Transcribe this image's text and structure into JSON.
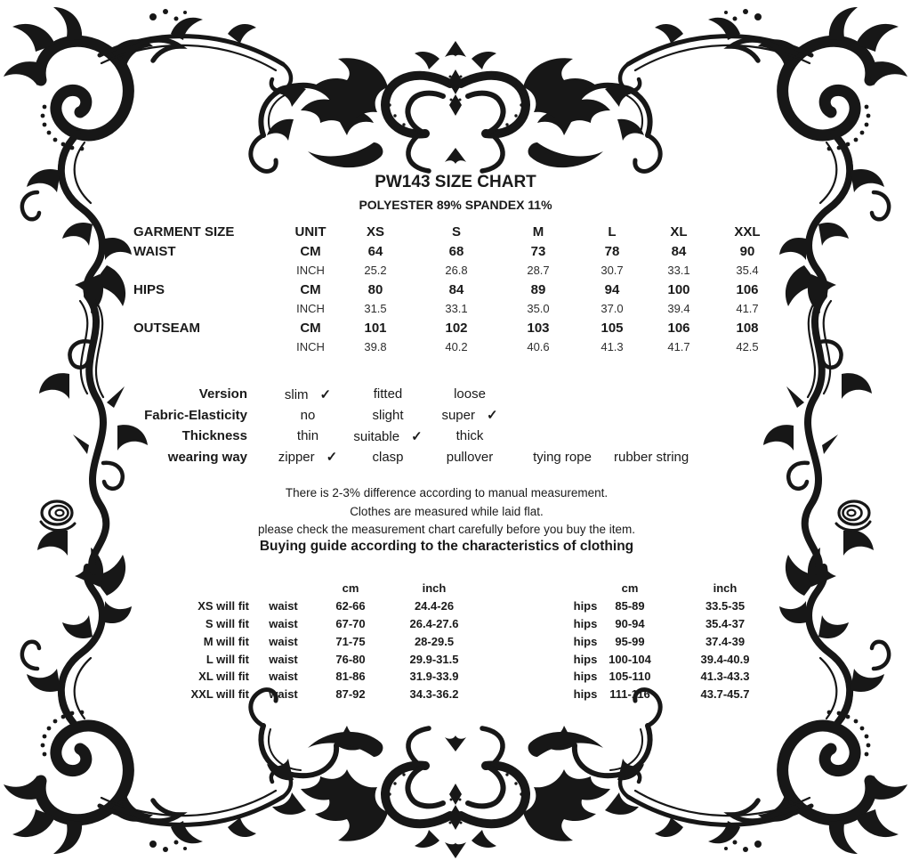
{
  "title": "PW143 SIZE CHART",
  "subtitle": "POLYESTER 89% SPANDEX 11%",
  "colors": {
    "ink": "#1a1a1a",
    "background": "#ffffff",
    "ornament": "#171717"
  },
  "decor": {
    "border_style": "ornate-floral-filigree",
    "motifs": [
      "corner-spiral-scroll",
      "side-vine-with-rose",
      "damask-centerpiece"
    ]
  },
  "size_table": {
    "header": [
      "GARMENT SIZE",
      "UNIT",
      "XS",
      "S",
      "M",
      "L",
      "XL",
      "XXL"
    ],
    "rows": [
      {
        "label": "WAIST",
        "unit": "CM",
        "bold": true,
        "values": [
          "64",
          "68",
          "73",
          "78",
          "84",
          "90"
        ]
      },
      {
        "label": "",
        "unit": "INCH",
        "bold": false,
        "values": [
          "25.2",
          "26.8",
          "28.7",
          "30.7",
          "33.1",
          "35.4"
        ]
      },
      {
        "label": "HIPS",
        "unit": "CM",
        "bold": true,
        "values": [
          "80",
          "84",
          "89",
          "94",
          "100",
          "106"
        ]
      },
      {
        "label": "",
        "unit": "INCH",
        "bold": false,
        "values": [
          "31.5",
          "33.1",
          "35.0",
          "37.0",
          "39.4",
          "41.7"
        ]
      },
      {
        "label": "OUTSEAM",
        "unit": "CM",
        "bold": true,
        "values": [
          "101",
          "102",
          "103",
          "105",
          "106",
          "108"
        ]
      },
      {
        "label": "",
        "unit": "INCH",
        "bold": false,
        "values": [
          "39.8",
          "40.2",
          "40.6",
          "41.3",
          "41.7",
          "42.5"
        ]
      }
    ]
  },
  "attributes": {
    "check_mark": "✓",
    "rows": [
      {
        "label": "Version",
        "options": [
          {
            "text": "slim",
            "checked": true
          },
          {
            "text": "fitted",
            "checked": false
          },
          {
            "text": "loose",
            "checked": false
          }
        ]
      },
      {
        "label": "Fabric-Elasticity",
        "options": [
          {
            "text": "no",
            "checked": false
          },
          {
            "text": "slight",
            "checked": false
          },
          {
            "text": "super",
            "checked": true
          }
        ]
      },
      {
        "label": "Thickness",
        "options": [
          {
            "text": "thin",
            "checked": false
          },
          {
            "text": "suitable",
            "checked": true
          },
          {
            "text": "thick",
            "checked": false
          }
        ]
      },
      {
        "label": "wearing way",
        "options": [
          {
            "text": "zipper",
            "checked": true
          },
          {
            "text": "clasp",
            "checked": false
          },
          {
            "text": "pullover",
            "checked": false
          },
          {
            "text": "tying rope",
            "checked": false
          },
          {
            "text": "rubber string",
            "checked": false
          }
        ]
      }
    ]
  },
  "notes": [
    "There is 2-3% difference according to manual measurement.",
    "Clothes are measured while laid flat.",
    "please check the measurement chart carefully before you buy the item."
  ],
  "buying_guide": {
    "heading": "Buying guide according to the characteristics of clothing",
    "col_headers": {
      "cm": "cm",
      "inch": "inch"
    },
    "rows": [
      {
        "size": "XS will fit",
        "waist_label": "waist",
        "waist_cm": "62-66",
        "waist_inch": "24.4-26",
        "hips_label": "hips",
        "hips_cm": "85-89",
        "hips_inch": "33.5-35"
      },
      {
        "size": "S will fit",
        "waist_label": "waist",
        "waist_cm": "67-70",
        "waist_inch": "26.4-27.6",
        "hips_label": "hips",
        "hips_cm": "90-94",
        "hips_inch": "35.4-37"
      },
      {
        "size": "M will fit",
        "waist_label": "waist",
        "waist_cm": "71-75",
        "waist_inch": "28-29.5",
        "hips_label": "hips",
        "hips_cm": "95-99",
        "hips_inch": "37.4-39"
      },
      {
        "size": "L will fit",
        "waist_label": "waist",
        "waist_cm": "76-80",
        "waist_inch": "29.9-31.5",
        "hips_label": "hips",
        "hips_cm": "100-104",
        "hips_inch": "39.4-40.9"
      },
      {
        "size": "XL will fit",
        "waist_label": "waist",
        "waist_cm": "81-86",
        "waist_inch": "31.9-33.9",
        "hips_label": "hips",
        "hips_cm": "105-110",
        "hips_inch": "41.3-43.3"
      },
      {
        "size": "XXL will fit",
        "waist_label": "waist",
        "waist_cm": "87-92",
        "waist_inch": "34.3-36.2",
        "hips_label": "hips",
        "hips_cm": "111-116",
        "hips_inch": "43.7-45.7"
      }
    ]
  }
}
